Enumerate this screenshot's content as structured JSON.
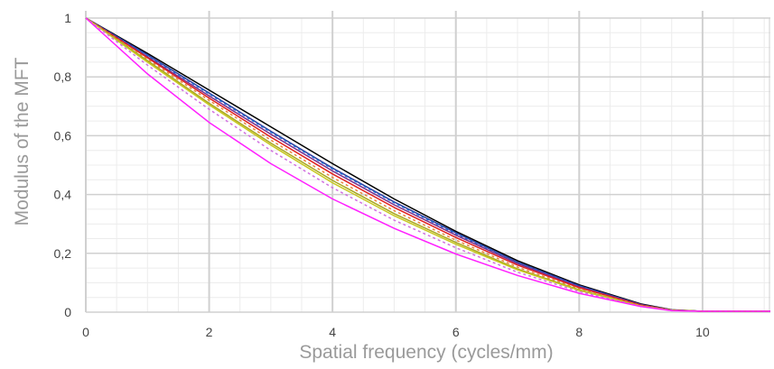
{
  "chart_data": {
    "type": "line",
    "title": "",
    "xlabel": "Spatial frequency (cycles/mm)",
    "ylabel": "Modulus of the MFT",
    "xlim": [
      0,
      11.1
    ],
    "ylim": [
      0,
      1
    ],
    "x_ticks": [
      "0",
      "2",
      "4",
      "6",
      "8",
      "10"
    ],
    "y_ticks": [
      "0",
      "0,2",
      "0,4",
      "0,6",
      "0,8",
      "1"
    ],
    "x_tick_values": [
      0,
      2,
      4,
      6,
      8,
      10
    ],
    "y_tick_values": [
      0,
      0.2,
      0.4,
      0.6,
      0.8,
      1
    ],
    "grid": {
      "major": true,
      "minor": true
    },
    "legend": "none",
    "x": [
      0,
      1,
      2,
      3,
      4,
      5,
      6,
      7,
      8,
      9,
      9.5,
      10,
      11.1
    ],
    "series": [
      {
        "color": "#000000",
        "dashed": false,
        "values": [
          1,
          0.88,
          0.755,
          0.63,
          0.505,
          0.385,
          0.275,
          0.175,
          0.093,
          0.028,
          0.008,
          0.003,
          0.003
        ]
      },
      {
        "color": "#2e3a9e",
        "dashed": false,
        "values": [
          1,
          0.875,
          0.745,
          0.615,
          0.49,
          0.375,
          0.27,
          0.17,
          0.09,
          0.026,
          0.007,
          0.003,
          0.003
        ]
      },
      {
        "color": "#1e6fd0",
        "dashed": true,
        "values": [
          1,
          0.872,
          0.742,
          0.612,
          0.487,
          0.372,
          0.267,
          0.168,
          0.088,
          0.025,
          0.007,
          0.003,
          0.003
        ]
      },
      {
        "color": "#7a2e8e",
        "dashed": false,
        "values": [
          1,
          0.868,
          0.735,
          0.605,
          0.48,
          0.365,
          0.262,
          0.165,
          0.086,
          0.025,
          0.007,
          0.003,
          0.003
        ]
      },
      {
        "color": "#e02020",
        "dashed": false,
        "values": [
          1,
          0.865,
          0.728,
          0.595,
          0.47,
          0.356,
          0.254,
          0.16,
          0.083,
          0.024,
          0.007,
          0.003,
          0.003
        ]
      },
      {
        "color": "#e8843c",
        "dashed": true,
        "values": [
          1,
          0.86,
          0.72,
          0.585,
          0.458,
          0.345,
          0.245,
          0.153,
          0.079,
          0.022,
          0.006,
          0.003,
          0.003
        ]
      },
      {
        "color": "#a8a820",
        "dashed": false,
        "values": [
          1,
          0.855,
          0.71,
          0.575,
          0.448,
          0.335,
          0.237,
          0.147,
          0.076,
          0.021,
          0.006,
          0.003,
          0.003
        ]
      },
      {
        "color": "#c8c820",
        "dashed": false,
        "values": [
          1,
          0.85,
          0.705,
          0.568,
          0.44,
          0.328,
          0.231,
          0.144,
          0.074,
          0.021,
          0.006,
          0.003,
          0.003
        ]
      },
      {
        "color": "#d070e0",
        "dashed": true,
        "values": [
          1,
          0.84,
          0.69,
          0.55,
          0.423,
          0.313,
          0.219,
          0.136,
          0.07,
          0.02,
          0.006,
          0.003,
          0.003
        ]
      },
      {
        "color": "#ff20ff",
        "dashed": false,
        "values": [
          1,
          0.81,
          0.645,
          0.505,
          0.385,
          0.285,
          0.198,
          0.125,
          0.064,
          0.019,
          0.005,
          0.003,
          0.003
        ]
      }
    ]
  }
}
